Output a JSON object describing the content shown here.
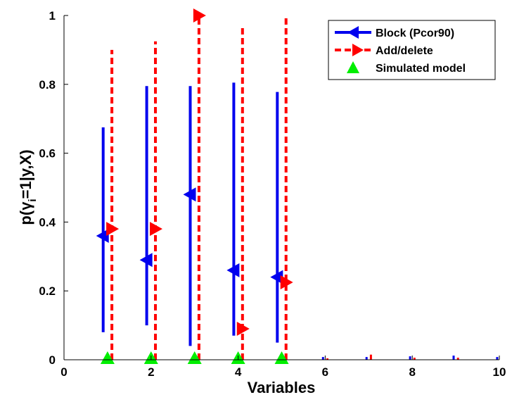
{
  "chart_data": {
    "type": "errorbar",
    "title": "",
    "xlabel": "Variables",
    "ylabel": "p(γ",
    "ylabel_sub": "i",
    "ylabel_rest": "=1|y,X)",
    "xlim": [
      0,
      10
    ],
    "ylim": [
      0,
      1
    ],
    "xticks": [
      "0",
      "2",
      "4",
      "6",
      "8",
      "10"
    ],
    "yticks": [
      "0",
      "0.2",
      "0.4",
      "0.6",
      "0.8",
      "1"
    ],
    "grid": false,
    "legend_position": "top-right",
    "series": [
      {
        "name": "Block (Pcor90)",
        "color": "#0000ee",
        "marker": "triangle-left",
        "line": "solid",
        "x": [
          0.9,
          1.9,
          2.9,
          3.9,
          4.9,
          5.95,
          6.95,
          7.95,
          8.95,
          9.95
        ],
        "y": [
          0.36,
          0.29,
          0.48,
          0.26,
          0.24,
          null,
          null,
          null,
          null,
          null
        ],
        "lower": [
          0.08,
          0.1,
          0.04,
          0.07,
          0.05,
          0.0,
          0.0,
          0.0,
          0.0,
          0.0
        ],
        "upper": [
          0.675,
          0.795,
          0.795,
          0.805,
          0.778,
          0.008,
          0.008,
          0.01,
          0.012,
          0.008
        ]
      },
      {
        "name": "Add/delete",
        "color": "#ff0000",
        "marker": "triangle-right",
        "line": "dashed",
        "x": [
          1.1,
          2.1,
          3.1,
          4.1,
          5.1,
          6.05,
          7.05,
          8.05,
          9.05,
          10.05
        ],
        "y": [
          0.38,
          0.38,
          1.0,
          0.09,
          0.225,
          null,
          null,
          null,
          null,
          null
        ],
        "lower": [
          0.0,
          0.0,
          0.0,
          0.0,
          0.0,
          0.0,
          0.0,
          0.0,
          0.0,
          0.0
        ],
        "upper": [
          0.9,
          0.925,
          1.0,
          0.97,
          1.0,
          0.004,
          0.015,
          0.006,
          0.006,
          0.0
        ]
      },
      {
        "name": "Simulated model",
        "color": "#00ee00",
        "marker": "triangle-up",
        "line": "none",
        "x": [
          1,
          2,
          3,
          4,
          5
        ],
        "y": [
          0,
          0,
          0,
          0,
          0
        ]
      }
    ]
  }
}
